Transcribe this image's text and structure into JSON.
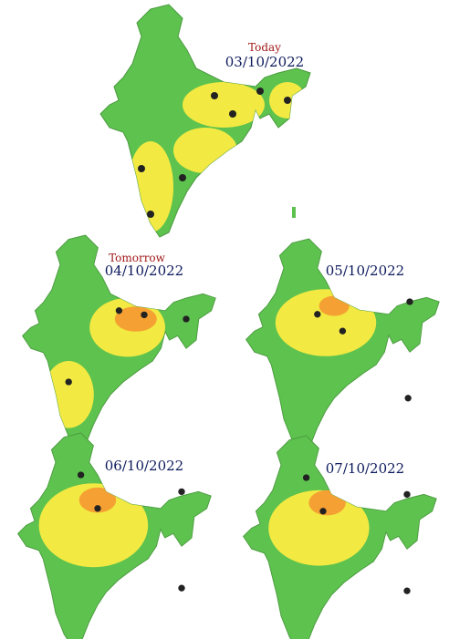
{
  "maps": [
    {
      "label": "Today",
      "date": "03/10/2022"
    },
    {
      "label": "Tomorrow",
      "date": "04/10/2022"
    },
    {
      "date": "05/10/2022"
    },
    {
      "date": "06/10/2022"
    },
    {
      "date": "07/10/2022"
    }
  ]
}
